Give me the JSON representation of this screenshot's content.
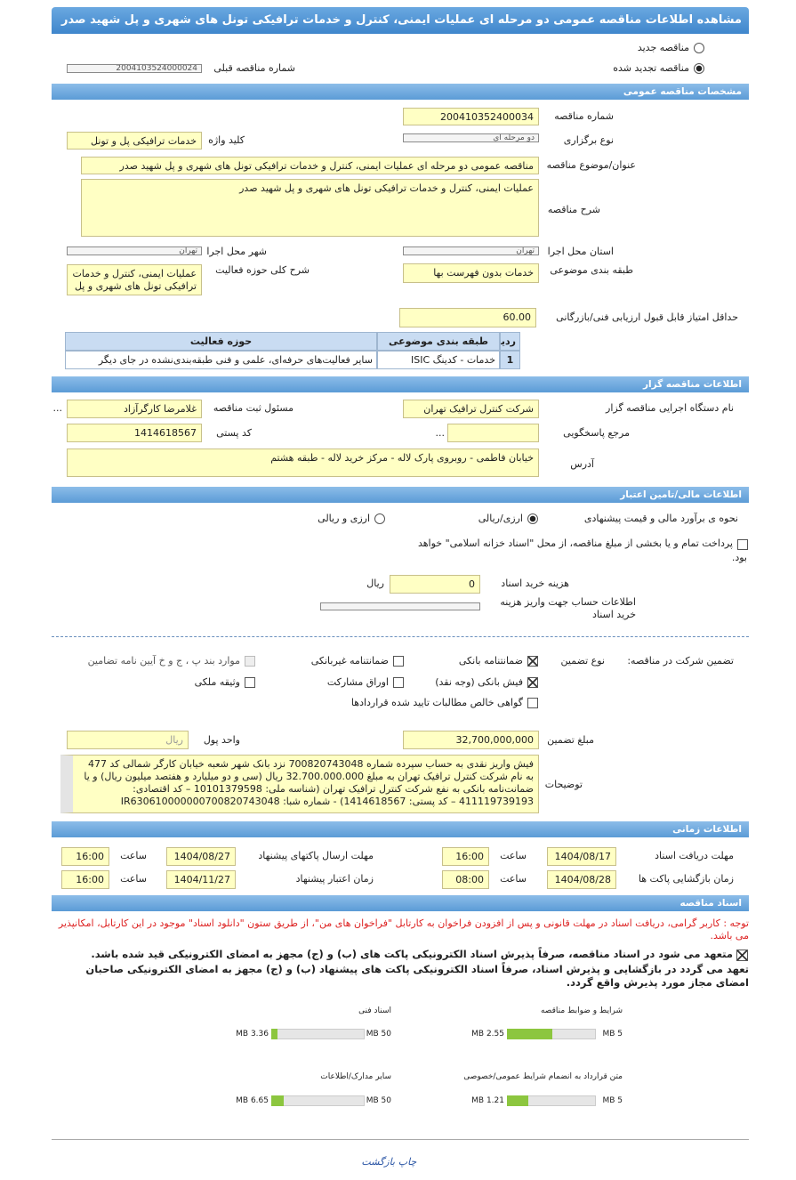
{
  "header": {
    "title": "مشاهده اطلاعات مناقصه عمومی دو مرحله ای عملیات ایمنی، کنترل و خدمات ترافیکی تونل های شهری و پل شهید صدر"
  },
  "tender_kind": {
    "options": [
      {
        "label": "مناقصه جدید",
        "checked": false
      },
      {
        "label": "مناقصه تجدید شده",
        "checked": true
      }
    ],
    "previous": {
      "label": "شماره مناقصه قبلی",
      "value": "2004103524000024"
    }
  },
  "general": {
    "title": "مشخصات مناقصه عمومی",
    "number": {
      "label": "شماره مناقصه",
      "value": "200410352400034"
    },
    "type": {
      "label": "نوع برگزاری",
      "value": "دو مرحله ای"
    },
    "keyword": {
      "label": "کلید واژه",
      "value": "خدمات ترافیکی پل و تونل"
    },
    "subject": {
      "label": "عنوان/موضوع مناقصه",
      "value": "مناقصه عمومی دو مرحله ای عملیات ایمنی، کنترل و خدمات ترافیکی تونل های شهری و پل شهید صدر"
    },
    "description": {
      "label": "شرح مناقصه",
      "value": "عملیات ایمنی، کنترل و خدمات ترافیکی تونل های شهری و پل شهید صدر"
    },
    "province": {
      "label": "استان محل اجرا",
      "value": "تهران"
    },
    "city": {
      "label": "شهر محل اجرا",
      "value": "تهران"
    },
    "classification": {
      "label": "طبقه بندی موضوعی",
      "value": "خدمات بدون فهرست بها"
    },
    "activity": {
      "label": "شرح کلی حوزه فعالیت",
      "value": "عملیات ایمنی، کنترل و خدمات ترافیکی تونل های شهری و پل شهید صدر"
    },
    "min_score": {
      "label": "حداقل امتیاز قابل قبول ارزیابی فنی/بازرگانی",
      "value": "60.00"
    },
    "table": {
      "headers": [
        "ردیف",
        "طبقه بندی موضوعی",
        "حوزه فعالیت"
      ],
      "rows": [
        [
          "1",
          "خدمات - کدینگ ISIC",
          "سایر فعالیت‌های حرفه‌ای، علمی و فنی طبقه‌بندی‌نشده در جای دیگر"
        ]
      ]
    }
  },
  "organizer": {
    "title": "اطلاعات مناقصه گزار",
    "name": {
      "label": "نام دستگاه اجرایی مناقصه گزار",
      "value": "شرکت کنترل ترافیک تهران"
    },
    "responsible": {
      "label": "مسئول ثبت مناقصه",
      "value": "غلامرضا کارگرآزاد",
      "button": "..."
    },
    "reference": {
      "label": "مرجع پاسخگویی",
      "button": "..."
    },
    "postal": {
      "label": "کد پستی",
      "value": "1414618567"
    },
    "address": {
      "label": "آدرس",
      "value": "خیابان فاطمی - روبروی پارک لاله - مرکز خرید لاله - طبقه هشتم"
    }
  },
  "finance": {
    "title": "اطلاعات مالی/تامین اعتبار",
    "estimate": {
      "label": "نحوه ی برآورد مالی و قیمت پیشنهادی",
      "options": [
        {
          "label": "ارزی/ریالی",
          "checked": true
        },
        {
          "label": "ارزی و ریالی",
          "checked": false
        }
      ]
    },
    "treasury": {
      "text": "پرداخت تمام و یا بخشی از مبلغ مناقصه، از محل \"اسناد خزانه اسلامی\" خواهد بود.",
      "checked": false
    },
    "doc_fee": {
      "label": "هزینه خرید اسناد",
      "value": "0",
      "unit": "ریال"
    },
    "account": {
      "label": "اطلاعات حساب جهت واریز هزینه خرید اسناد"
    },
    "guarantee": {
      "label": "تضمین شرکت در مناقصه:",
      "type_label": "نوع تضمین",
      "options": [
        {
          "label": "ضمانتنامه بانکی",
          "checked": true,
          "disabled": false
        },
        {
          "label": "ضمانتنامه غیربانکی",
          "checked": false,
          "disabled": false
        },
        {
          "label": "موارد بند پ ، ج و خ آیین نامه تضامین",
          "checked": false,
          "disabled": true
        },
        {
          "label": "فیش بانکی (وجه نقد)",
          "checked": true,
          "disabled": false
        },
        {
          "label": "اوراق مشارکت",
          "checked": false,
          "disabled": false
        },
        {
          "label": "وثیقه ملکی",
          "checked": false,
          "disabled": false
        },
        {
          "label": "گواهی خالص مطالبات تایید شده قراردادها",
          "checked": false,
          "disabled": false
        }
      ]
    },
    "amount": {
      "label": "مبلغ تضمین",
      "value": "32,700,000,000"
    },
    "currency": {
      "label": "واحد پول",
      "value": "ریال"
    },
    "notes": {
      "label": "توضیحات",
      "value": "فیش واریز نقدی به حساب سپرده شماره 700820743048 نزد بانک شهر شعبه خیابان کارگر شمالی کد 477 به نام شرکت کنترل ترافیک تهران به مبلغ 32.700.000.000 ریال (سی و دو میلیارد و هفتصد میلیون ریال) و یا ضمانت‌نامه بانکی به نفع شرکت کنترل ترافیک تهران (شناسه ملی: 10101379598 – کد اقتصادی: 411119739193 – کد پستی: 1414618567) - شماره شبا: IR630610000000700820743048"
    }
  },
  "timing": {
    "title": "اطلاعات زمانی",
    "time_label": "ساعت",
    "rows": [
      {
        "label": "مهلت دریافت اسناد",
        "date": "1404/08/17",
        "time": "16:00"
      },
      {
        "label": "مهلت ارسال پاکتهای پیشنهاد",
        "date": "1404/08/27",
        "time": "16:00"
      },
      {
        "label": "زمان بازگشایی پاکت ها",
        "date": "1404/08/28",
        "time": "08:00"
      },
      {
        "label": "زمان اعتبار پیشنهاد",
        "date": "1404/11/27",
        "time": "16:00"
      }
    ]
  },
  "documents": {
    "title": "اسناد مناقصه",
    "note": "توجه : کاربر گرامی، دریافت اسناد در مهلت قانونی و پس از افزودن فراخوان به کارتابل \"فراخوان های من\"، از طریق ستون \"دانلود اسناد\" موجود در این کارتابل، امکانپذیر می باشد.",
    "commitments": [
      {
        "text": "متعهد می شود در اسناد مناقصه، صرفاً پذیرش اسناد الکترونیکی پاکت های (ب) و (ج) مجهز به امضای الکترونیکی قید شده باشد.",
        "checked": true
      },
      {
        "text": "تعهد می گردد در بازگشایی و پذیرش اسناد، صرفاً اسناد الکترونیکی پاکت های پیشنهاد (ب) و (ج) مجهز به امضای الکترونیکی صاحبان امضای مجاز مورد پذیرش واقع گردد."
      }
    ],
    "files": [
      {
        "name": "شرایط و ضوابط مناقصه",
        "used": {
          "value": 2.55,
          "label": "2.55 MB"
        },
        "limit": {
          "value": 5,
          "label": "5 MB"
        }
      },
      {
        "name": "اسناد فنی",
        "used": {
          "value": 3.36,
          "label": "3.36 MB"
        },
        "limit": {
          "value": 50,
          "label": "50 MB"
        }
      },
      {
        "name": "متن قرارداد به انضمام شرایط عمومی/خصوصی",
        "used": {
          "value": 1.21,
          "label": "1.21 MB"
        },
        "limit": {
          "value": 5,
          "label": "5 MB"
        }
      },
      {
        "name": "سایر مدارک/اطلاعات",
        "used": {
          "value": 6.65,
          "label": "6.65 MB"
        },
        "limit": {
          "value": 50,
          "label": "50 MB"
        }
      }
    ]
  },
  "footer": {
    "links": [
      "چاپ",
      "بازگشت"
    ]
  }
}
